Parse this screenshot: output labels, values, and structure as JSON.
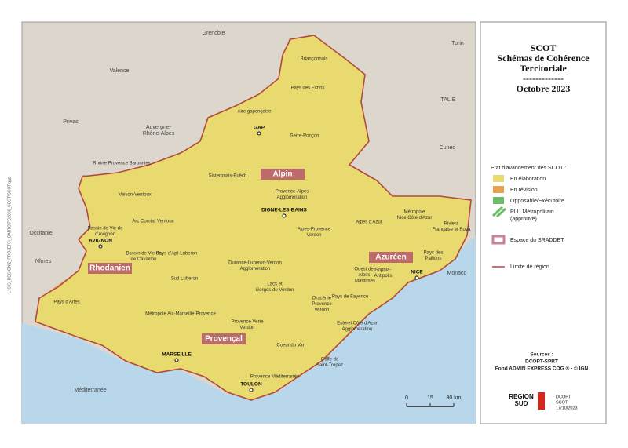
{
  "panel": {
    "title": [
      "SCOT",
      "Schémas de Cohérence",
      "Territoriale",
      "-------------",
      "Octobre 2023"
    ],
    "legend_title": "Etat d'avancement des SCOT :",
    "legend": [
      {
        "label": [
          "En élaboration"
        ],
        "kind": "fill",
        "color": "#e8da6e"
      },
      {
        "label": [
          "En révision"
        ],
        "kind": "fill",
        "color": "#e8a24f"
      },
      {
        "label": [
          "Opposable/Exécutoire"
        ],
        "kind": "fill",
        "color": "#6dbd68"
      },
      {
        "label": [
          "PLU Métropolitain",
          "(approuvé)"
        ],
        "kind": "hatch",
        "color": "#6dbd68"
      },
      {
        "label": [
          "Espace du SRADDET"
        ],
        "kind": "sraddet",
        "color": "#c98394"
      },
      {
        "label": [
          "Limite de région"
        ],
        "kind": "line",
        "color": "#b24a3c"
      }
    ],
    "sources": [
      "Sources :",
      "DCOPT-SPRT",
      "Fond ADMIN EXPRESS COG ® - © IGN"
    ],
    "logo": [
      "REGION",
      "SUD"
    ],
    "stamp": [
      "DCOPT",
      "SCOT",
      "17/10/2023"
    ]
  },
  "map": {
    "places": [
      "Grenoble",
      "Turin",
      "Valence",
      "Privas",
      "Auvergne-",
      "Rhône-Alpes",
      "ITALIE",
      "Cuneo",
      "Occitanie",
      "Nîmes",
      "Monaco",
      "Méditerranée"
    ],
    "cities": [
      "GAP",
      "DIGNE-LES-BAINS",
      "AVIGNON",
      "MARSEILLE",
      "TOULON",
      "NICE"
    ],
    "regions": [
      "Alpin",
      "Rhodanien",
      "Azuréen",
      "Provençal"
    ],
    "scots": [
      [
        "Briançonnais"
      ],
      [
        "Pays des Ecrins"
      ],
      [
        "Aire gapençaise"
      ],
      [
        "Serre-Ponçon"
      ],
      [
        "Rhône Provence Baronnies"
      ],
      [
        "Sisteronais-Buëch"
      ],
      [
        "Provence-Alpes",
        "Agglomération"
      ],
      [
        "Vaison-Ventoux"
      ],
      [
        "Arc Comtat Ventoux"
      ],
      [
        "Bassin de Vie de",
        "d'Avignon"
      ],
      [
        "Bassin de Vie de",
        "de Cavaillon"
      ],
      [
        "Pays d'Apt-Luberon"
      ],
      [
        "Alpes-Provence",
        "Verdon"
      ],
      [
        "Alpes d'Azur"
      ],
      [
        "Métropole",
        "Nice Côte d'Azur"
      ],
      [
        "Riviera",
        "Française et Roya"
      ],
      [
        "Durance-Luberon-Verdon",
        "Agglomération"
      ],
      [
        "Sud Luberon"
      ],
      [
        "Pays des",
        "Paillons"
      ],
      [
        "Sophia-",
        "Antipolis"
      ],
      [
        "Ouest des",
        "Alpes-",
        "Maritimes"
      ],
      [
        "Lacs et",
        "Gorges du Verdon"
      ],
      [
        "Pays d'Arles"
      ],
      [
        "Métropole Aix-Marseille-Provence"
      ],
      [
        "Provence Verte",
        "Verdon"
      ],
      [
        "Dracénie",
        "Provence",
        "Verdon"
      ],
      [
        "Pays de Fayence"
      ],
      [
        "Esterel Côte d'Azur",
        "Agglomération"
      ],
      [
        "Coeur du Var"
      ],
      [
        "Golfe de",
        "Saint-Tropez"
      ],
      [
        "Provence Méditerranée"
      ]
    ]
  },
  "scale": [
    "0",
    "15",
    "30 km"
  ],
  "file_path": "L:\\SIG_REGION\\2_PROJETS\\_CARTO\\PC2006_SCOT\\SCOT.qgz"
}
